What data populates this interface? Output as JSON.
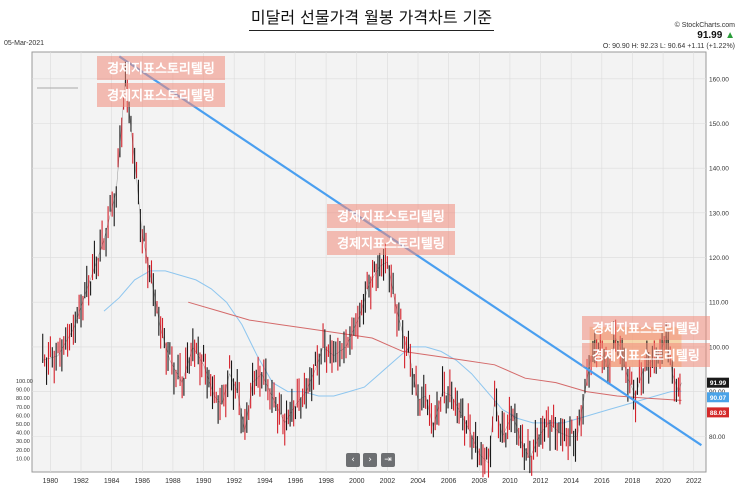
{
  "page_title": "미달러 선물가격 월봉 가격차트 기준",
  "source": "© StockCharts.com",
  "price": {
    "last": "91.99",
    "arrow": "▲",
    "ohlc": "O: 90.90   H: 92.23   L: 90.64   +1.11 (+1.22%)"
  },
  "date_label": "05-Mar-2021",
  "watermark": "경제지표스토리텔링",
  "nav_buttons": {
    "prev": "‹",
    "next": "›",
    "last": "⇥"
  },
  "colors": {
    "price_up": "#1a1a1a",
    "price_down": "#d4202a",
    "trendline": "#4a9ff0",
    "ma_short": "#8ec6ef",
    "ma_long": "#d46a6a",
    "watermark_box": "#f08a7a",
    "highlight_box": "#f6c27a",
    "last_badge": "#1a1a1a",
    "ma_short_badge": "#4aa3e8",
    "ma_long_badge": "#d42a2a"
  },
  "chart_data": {
    "type": "line",
    "description_series": "monthly OHLC (approximated as monthly closes)",
    "x_ticks": [
      "1980",
      "1982",
      "1984",
      "1986",
      "1988",
      "1990",
      "1992",
      "1994",
      "1996",
      "1998",
      "2000",
      "2002",
      "2004",
      "2006",
      "2008",
      "2010",
      "2012",
      "2014",
      "2016",
      "2018",
      "2020",
      "2022"
    ],
    "y_ticks": [
      160,
      150,
      140,
      130,
      120,
      110,
      100,
      90,
      80
    ],
    "y_ticks_low": [
      "100.00",
      "90.00",
      "80.00",
      "70.00",
      "60.00",
      "50.00",
      "40.00",
      "30.00",
      "20.00",
      "10.00"
    ],
    "ylim": [
      72,
      166
    ],
    "xlim": [
      1978.8,
      2022.8
    ],
    "grid": true,
    "series": [
      {
        "role": "price",
        "points": [
          [
            1979.5,
            97
          ],
          [
            1980.5,
            98
          ],
          [
            1981.5,
            104
          ],
          [
            1982.5,
            114
          ],
          [
            1983.5,
            124
          ],
          [
            1984.3,
            135
          ],
          [
            1984.9,
            160
          ],
          [
            1985.5,
            142
          ],
          [
            1986,
            125
          ],
          [
            1986.6,
            115
          ],
          [
            1987.2,
            104
          ],
          [
            1987.8,
            97
          ],
          [
            1988.6,
            92
          ],
          [
            1989.3,
            100
          ],
          [
            1990,
            96
          ],
          [
            1990.7,
            89
          ],
          [
            1991.2,
            87
          ],
          [
            1991.7,
            94
          ],
          [
            1992.2,
            90
          ],
          [
            1992.7,
            81
          ],
          [
            1993.2,
            92
          ],
          [
            1993.8,
            94
          ],
          [
            1994.6,
            88
          ],
          [
            1995.3,
            83
          ],
          [
            1996,
            87
          ],
          [
            1996.7,
            90
          ],
          [
            1997.3,
            95
          ],
          [
            1997.8,
            100
          ],
          [
            1998.5,
            98
          ],
          [
            1999.3,
            100
          ],
          [
            2000.2,
            107
          ],
          [
            2000.8,
            114
          ],
          [
            2001.5,
            118
          ],
          [
            2002.0,
            119
          ],
          [
            2002.5,
            110
          ],
          [
            2003,
            103
          ],
          [
            2003.5,
            97
          ],
          [
            2004,
            88
          ],
          [
            2004.5,
            89
          ],
          [
            2005,
            82
          ],
          [
            2005.6,
            90
          ],
          [
            2006.2,
            89
          ],
          [
            2006.8,
            85
          ],
          [
            2007.4,
            81
          ],
          [
            2008.0,
            76
          ],
          [
            2008.6,
            74
          ],
          [
            2009.0,
            88
          ],
          [
            2009.5,
            80
          ],
          [
            2010.2,
            85
          ],
          [
            2010.7,
            79
          ],
          [
            2011.3,
            75
          ],
          [
            2011.9,
            80
          ],
          [
            2012.5,
            83
          ],
          [
            2013.2,
            81
          ],
          [
            2013.8,
            80
          ],
          [
            2014.4,
            80
          ],
          [
            2014.9,
            90
          ],
          [
            2015.3,
            98
          ],
          [
            2015.9,
            100
          ],
          [
            2016.4,
            95
          ],
          [
            2016.9,
            102
          ],
          [
            2017.2,
            100
          ],
          [
            2017.7,
            93
          ],
          [
            2018.2,
            89
          ],
          [
            2018.7,
            95
          ],
          [
            2019.3,
            97
          ],
          [
            2019.8,
            98
          ],
          [
            2020.2,
            103
          ],
          [
            2020.6,
            94
          ],
          [
            2021.0,
            90
          ],
          [
            2021.2,
            91.99
          ]
        ]
      },
      {
        "role": "ma_short",
        "points": [
          [
            1983.5,
            108
          ],
          [
            1984.5,
            111
          ],
          [
            1985.5,
            115
          ],
          [
            1986.5,
            117
          ],
          [
            1987.5,
            117
          ],
          [
            1988.5,
            116
          ],
          [
            1989.5,
            115
          ],
          [
            1990.5,
            113
          ],
          [
            1991.5,
            110
          ],
          [
            1992.5,
            105
          ],
          [
            1993.5,
            98
          ],
          [
            1994.5,
            92
          ],
          [
            1995.5,
            90
          ],
          [
            1996.5,
            90
          ],
          [
            1997.5,
            89
          ],
          [
            1998.5,
            89
          ],
          [
            1999.5,
            90
          ],
          [
            2000.5,
            91
          ],
          [
            2001.5,
            94
          ],
          [
            2002.5,
            97
          ],
          [
            2003.5,
            100
          ],
          [
            2004.5,
            100
          ],
          [
            2005.5,
            99
          ],
          [
            2006.5,
            97
          ],
          [
            2007.5,
            94
          ],
          [
            2008.5,
            90
          ],
          [
            2009.5,
            86
          ],
          [
            2010.5,
            84
          ],
          [
            2011.5,
            83
          ],
          [
            2012.5,
            83
          ],
          [
            2013.5,
            83
          ],
          [
            2014.5,
            84
          ],
          [
            2015.5,
            85
          ],
          [
            2016.5,
            86
          ],
          [
            2017.5,
            87
          ],
          [
            2018.5,
            88
          ],
          [
            2019.5,
            89
          ],
          [
            2020.5,
            90
          ],
          [
            2021.2,
            90.07
          ]
        ]
      },
      {
        "role": "ma_long",
        "points": [
          [
            1989,
            110
          ],
          [
            1991,
            108
          ],
          [
            1993,
            106
          ],
          [
            1995,
            105
          ],
          [
            1997,
            104
          ],
          [
            1999,
            103
          ],
          [
            2001,
            102
          ],
          [
            2003,
            99
          ],
          [
            2005,
            98
          ],
          [
            2007,
            97
          ],
          [
            2009,
            96
          ],
          [
            2011,
            93
          ],
          [
            2013,
            92
          ],
          [
            2015,
            90
          ],
          [
            2017,
            89
          ],
          [
            2019,
            88.5
          ],
          [
            2021.2,
            88.03
          ]
        ]
      },
      {
        "role": "trendline",
        "points": [
          [
            1984.5,
            165
          ],
          [
            2022.5,
            78
          ]
        ]
      }
    ],
    "axis_badges": [
      "91.99",
      "90.07",
      "88.03"
    ]
  }
}
